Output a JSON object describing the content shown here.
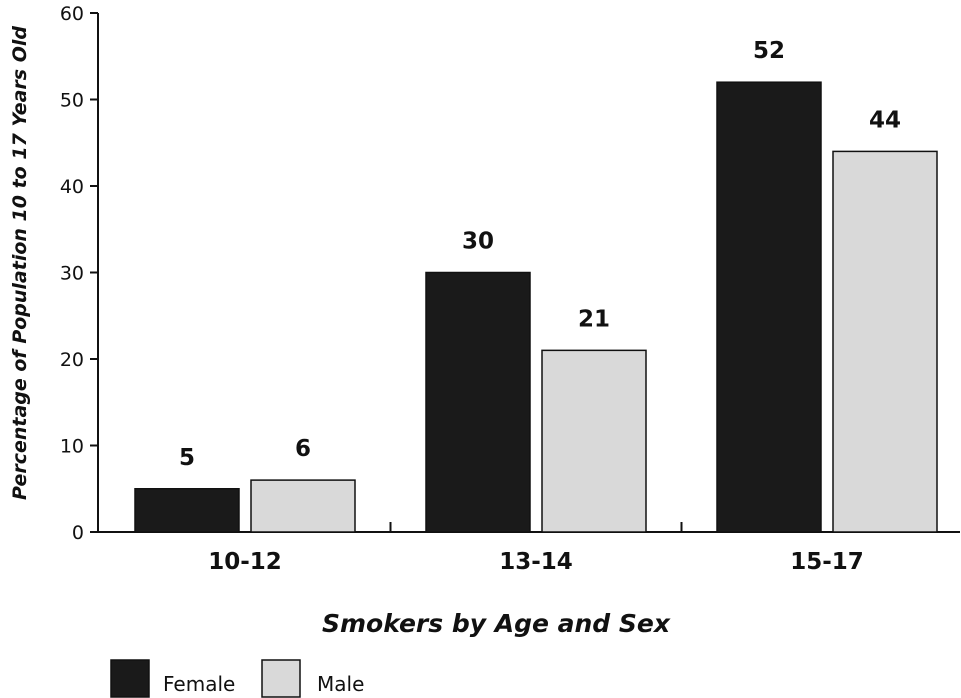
{
  "chart_data": {
    "type": "bar",
    "title": "",
    "xlabel": "Smokers by Age and Sex",
    "ylabel": "Percentage of Population 10 to 17 Years Old",
    "categories": [
      "10-12",
      "13-14",
      "15-17"
    ],
    "series": [
      {
        "name": "Female",
        "values": [
          5,
          30,
          52
        ],
        "color": "#1a1a1a"
      },
      {
        "name": "Male",
        "values": [
          6,
          21,
          44
        ],
        "color": "#d9d9d9"
      }
    ],
    "ylim": [
      0,
      60
    ],
    "yticks": [
      0,
      10,
      20,
      30,
      40,
      50,
      60
    ],
    "ytick_labels": [
      "0",
      "10",
      "20",
      "30",
      "40",
      "50",
      "60"
    ],
    "data_labels": [
      [
        "5",
        "30",
        "52"
      ],
      [
        "6",
        "21",
        "44"
      ]
    ],
    "grid": false,
    "legend": "bottom-left"
  }
}
